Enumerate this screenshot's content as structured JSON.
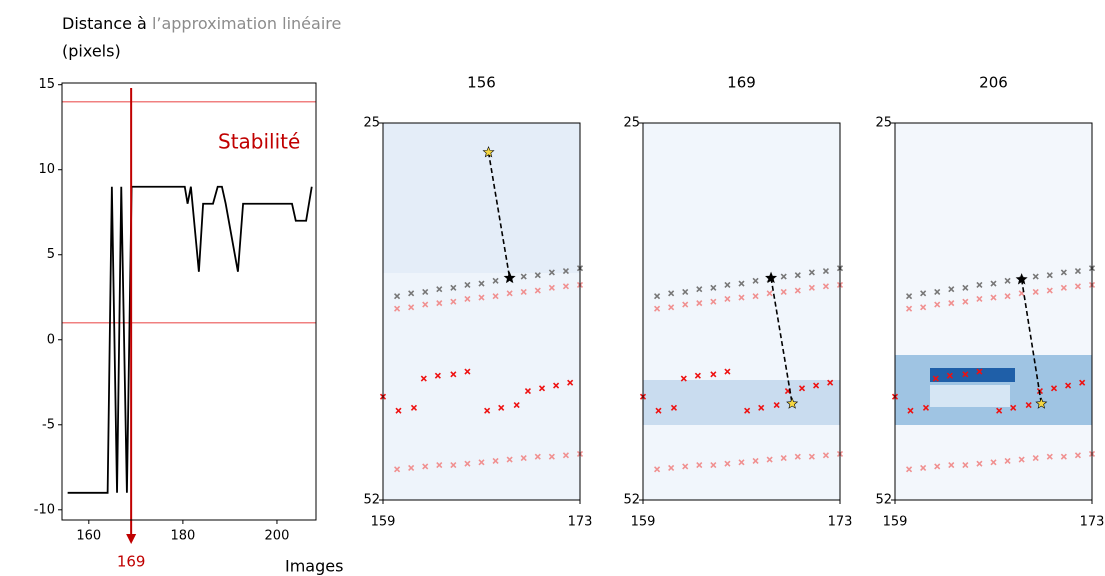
{
  "chart_data": [
    {
      "type": "line",
      "xlabel": "Images",
      "ylabel": [
        "Distance à ",
        "l’approximation linéaire",
        "(pixels)"
      ],
      "annotation": "Stabilité",
      "vline": 169,
      "vline_color": "#c00000",
      "hlines": [
        14,
        1
      ],
      "hline_color": "#f08080",
      "color": "#000000",
      "x": [
        155.5,
        164,
        164.9,
        166,
        166.9,
        168.1,
        169.1,
        180.4,
        181,
        181.7,
        183.4,
        184.3,
        186.4,
        187.4,
        188.3,
        189.1,
        191.7,
        192.8,
        203.2,
        204,
        206.2,
        207.4
      ],
      "values": [
        -9,
        -9,
        9,
        -9,
        9,
        -9,
        9,
        9,
        8,
        9,
        4,
        8,
        8,
        9,
        9,
        8,
        4,
        8,
        8,
        7,
        7,
        9
      ],
      "xlim": [
        154.3,
        208.3
      ],
      "ylim": [
        -10.6,
        15.1
      ],
      "xticks": [
        160,
        180,
        200
      ],
      "yticks": [
        -10,
        -5,
        0,
        5,
        10,
        15
      ]
    },
    {
      "type": "scatter",
      "title": "156",
      "xlim": [
        159,
        173
      ],
      "ylim": [
        52,
        25
      ],
      "xticks": [
        159,
        173
      ],
      "yticks": [
        25,
        52
      ],
      "series": [
        {
          "color": "#777777",
          "x": [
            160,
            161,
            162,
            163,
            164,
            165,
            166,
            167,
            168,
            169,
            170,
            171,
            172,
            173
          ],
          "values": [
            37.4,
            37.2,
            37.1,
            36.9,
            36.8,
            36.6,
            36.5,
            36.3,
            36.2,
            36.0,
            35.9,
            35.7,
            35.6,
            35.4
          ]
        },
        {
          "color": "#f09090",
          "x": [
            160,
            161,
            162,
            163,
            164,
            165,
            166,
            167,
            168,
            169,
            170,
            171,
            172,
            173
          ],
          "values": [
            38.3,
            38.2,
            38.0,
            37.9,
            37.8,
            37.6,
            37.5,
            37.4,
            37.2,
            37.1,
            37.0,
            36.8,
            36.7,
            36.6
          ]
        },
        {
          "color": "#f09090",
          "x": [
            160,
            161,
            162,
            163,
            164,
            165,
            166,
            167,
            168,
            169,
            170,
            171,
            172,
            173
          ],
          "values": [
            49.8,
            49.7,
            49.6,
            49.5,
            49.5,
            49.4,
            49.3,
            49.2,
            49.1,
            49.0,
            48.9,
            48.9,
            48.8,
            48.7
          ]
        },
        {
          "color": "#ee1111",
          "x": [
            159,
            160.1,
            161.2,
            161.9,
            162.9,
            164,
            165,
            166.4,
            167.4,
            168.5,
            169.3,
            170.3,
            171.3,
            172.3
          ],
          "values": [
            44.6,
            45.6,
            45.4,
            43.3,
            43.1,
            43.0,
            42.8,
            45.6,
            45.4,
            45.2,
            44.2,
            44.0,
            43.8,
            43.6
          ]
        }
      ],
      "stars": {
        "x": [
          166.5,
          168
        ],
        "values": [
          27.1,
          36.1
        ],
        "colors": [
          "#f5d742",
          "#000000"
        ]
      }
    },
    {
      "type": "scatter",
      "title": "169",
      "xlim": [
        159,
        173
      ],
      "ylim": [
        52,
        25
      ],
      "xticks": [
        159,
        173
      ],
      "yticks": [
        25,
        52
      ],
      "series": [
        {
          "color": "#777777",
          "x": [
            160,
            161,
            162,
            163,
            164,
            165,
            166,
            167,
            168,
            169,
            170,
            171,
            172,
            173
          ],
          "values": [
            37.4,
            37.2,
            37.1,
            36.9,
            36.8,
            36.6,
            36.5,
            36.3,
            36.2,
            36.0,
            35.9,
            35.7,
            35.6,
            35.4
          ]
        },
        {
          "color": "#f09090",
          "x": [
            160,
            161,
            162,
            163,
            164,
            165,
            166,
            167,
            168,
            169,
            170,
            171,
            172,
            173
          ],
          "values": [
            38.3,
            38.2,
            38.0,
            37.9,
            37.8,
            37.6,
            37.5,
            37.4,
            37.2,
            37.1,
            37.0,
            36.8,
            36.7,
            36.6
          ]
        },
        {
          "color": "#f09090",
          "x": [
            160,
            161,
            162,
            163,
            164,
            165,
            166,
            167,
            168,
            169,
            170,
            171,
            172,
            173
          ],
          "values": [
            49.8,
            49.7,
            49.6,
            49.5,
            49.5,
            49.4,
            49.3,
            49.2,
            49.1,
            49.0,
            48.9,
            48.9,
            48.8,
            48.7
          ]
        },
        {
          "color": "#ee1111",
          "x": [
            159,
            160.1,
            161.2,
            161.9,
            162.9,
            164,
            165,
            166.4,
            167.4,
            168.5,
            169.3,
            170.3,
            171.3,
            172.3
          ],
          "values": [
            44.6,
            45.6,
            45.4,
            43.3,
            43.1,
            43.0,
            42.8,
            45.6,
            45.4,
            45.2,
            44.2,
            44.0,
            43.8,
            43.6
          ]
        }
      ],
      "stars": {
        "x": [
          168.1,
          169.6
        ],
        "values": [
          36.1,
          45.1
        ],
        "colors": [
          "#000000",
          "#f5d742"
        ]
      }
    },
    {
      "type": "scatter",
      "title": "206",
      "xlim": [
        159,
        173
      ],
      "ylim": [
        52,
        25
      ],
      "xticks": [
        159,
        173
      ],
      "yticks": [
        25,
        52
      ],
      "series": [
        {
          "color": "#777777",
          "x": [
            160,
            161,
            162,
            163,
            164,
            165,
            166,
            167,
            168,
            169,
            170,
            171,
            172,
            173
          ],
          "values": [
            37.4,
            37.2,
            37.1,
            36.9,
            36.8,
            36.6,
            36.5,
            36.3,
            36.2,
            36.0,
            35.9,
            35.7,
            35.6,
            35.4
          ]
        },
        {
          "color": "#f09090",
          "x": [
            160,
            161,
            162,
            163,
            164,
            165,
            166,
            167,
            168,
            169,
            170,
            171,
            172,
            173
          ],
          "values": [
            38.3,
            38.2,
            38.0,
            37.9,
            37.8,
            37.6,
            37.5,
            37.4,
            37.2,
            37.1,
            37.0,
            36.8,
            36.7,
            36.6
          ]
        },
        {
          "color": "#f09090",
          "x": [
            160,
            161,
            162,
            163,
            164,
            165,
            166,
            167,
            168,
            169,
            170,
            171,
            172,
            173
          ],
          "values": [
            49.8,
            49.7,
            49.6,
            49.5,
            49.5,
            49.4,
            49.3,
            49.2,
            49.1,
            49.0,
            48.9,
            48.9,
            48.8,
            48.7
          ]
        },
        {
          "color": "#ee1111",
          "x": [
            159,
            160.1,
            161.2,
            161.9,
            162.9,
            164,
            165,
            166.4,
            167.4,
            168.5,
            169.3,
            170.3,
            171.3,
            172.3
          ],
          "values": [
            44.6,
            45.6,
            45.4,
            43.3,
            43.1,
            43.0,
            42.8,
            45.6,
            45.4,
            45.2,
            44.2,
            44.0,
            43.8,
            43.6
          ]
        }
      ],
      "stars": {
        "x": [
          168,
          169.4
        ],
        "values": [
          36.2,
          45.1
        ],
        "colors": [
          "#000000",
          "#f5d742"
        ]
      }
    }
  ]
}
